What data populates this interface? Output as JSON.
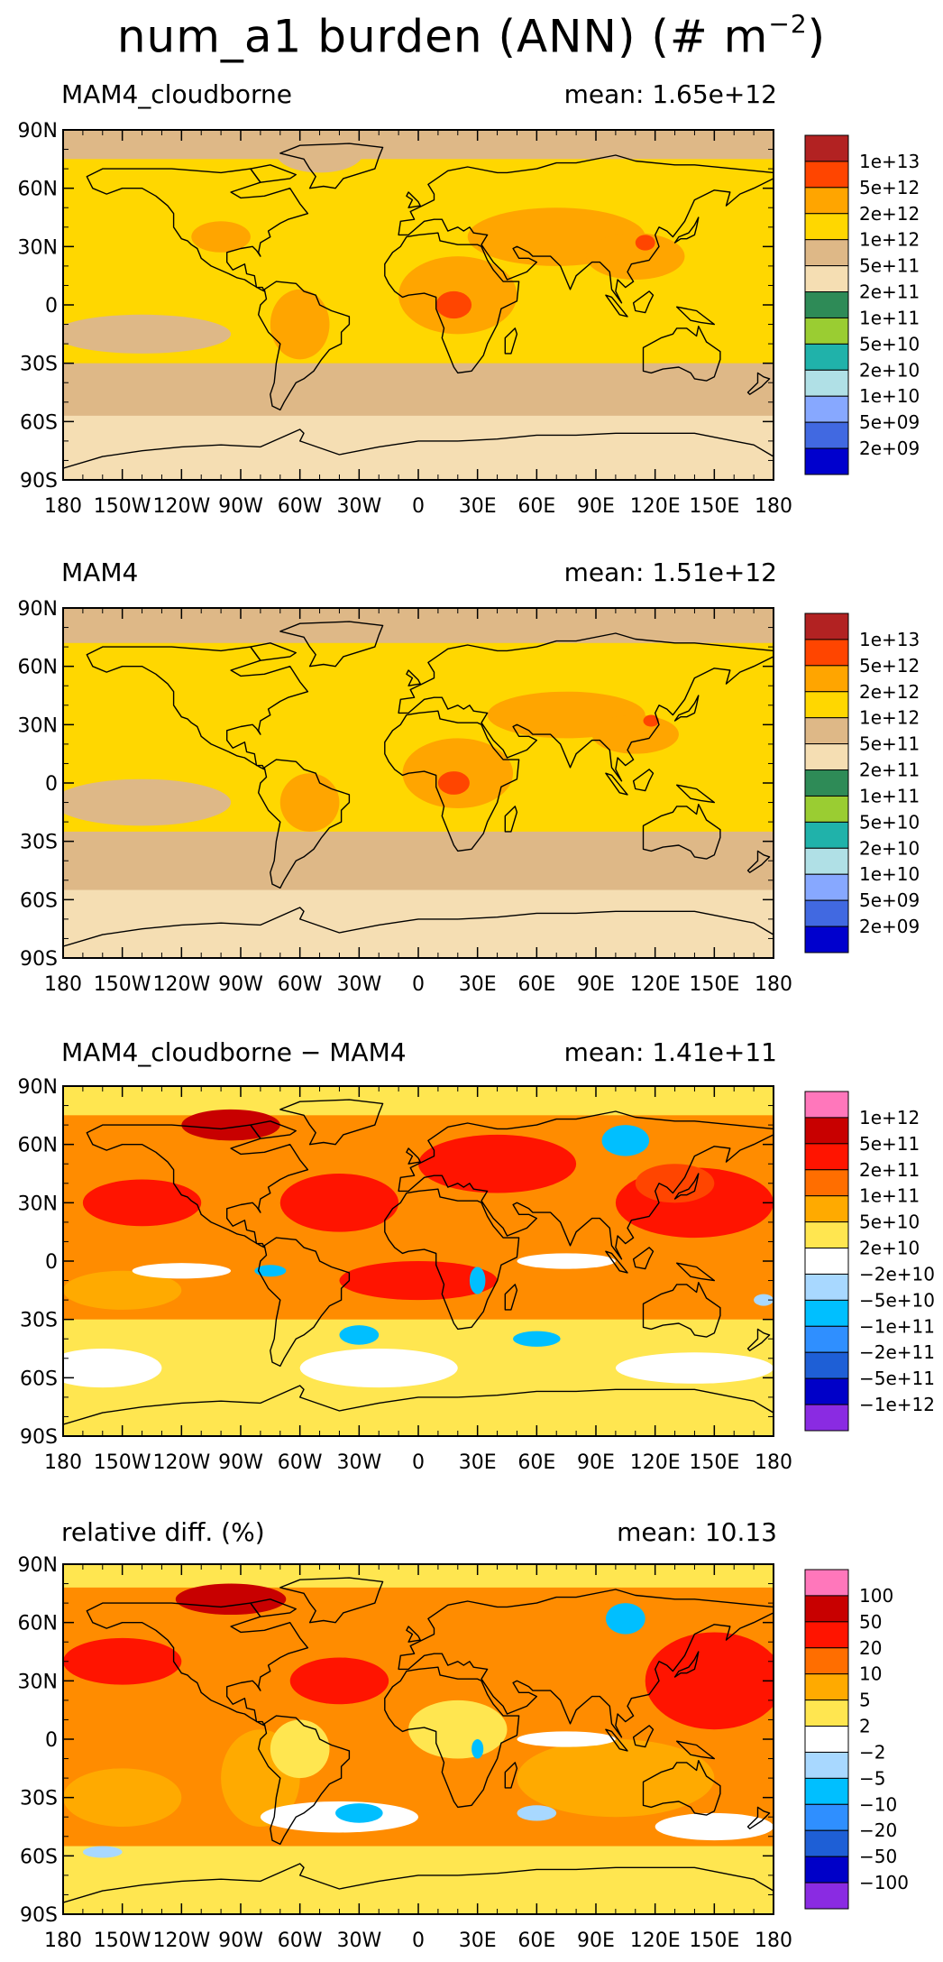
{
  "figure": {
    "title_main": "num_a1 burden (ANN) (# m",
    "title_exp": "−2",
    "title_close": ")"
  },
  "axes": {
    "lat_labels": [
      "90N",
      "60N",
      "30N",
      "0",
      "30S",
      "60S",
      "90S"
    ],
    "lon_labels": [
      "180",
      "150W",
      "120W",
      "90W",
      "60W",
      "30W",
      "0",
      "30E",
      "60E",
      "90E",
      "120E",
      "150E",
      "180"
    ]
  },
  "panels": [
    {
      "title": "MAM4_cloudborne",
      "mean_label": "mean:",
      "mean_value": "1.65e+12",
      "colorbar": {
        "labels": [
          "1e+13",
          "5e+12",
          "2e+12",
          "1e+12",
          "5e+11",
          "2e+11",
          "1e+11",
          "5e+10",
          "2e+10",
          "1e+10",
          "5e+09",
          "2e+09"
        ],
        "colors": [
          "#b22222",
          "#ff4500",
          "#ffa500",
          "#ffd700",
          "#deb887",
          "#f5deb3",
          "#2e8b57",
          "#9acd32",
          "#20b2aa",
          "#b0e0e6",
          "#87a8ff",
          "#4169e1",
          "#0000cd"
        ]
      },
      "map": {
        "background": "#ffd700",
        "blobs": [
          {
            "color": "#deb887",
            "shape": "rect",
            "lon": [
              -180,
              180
            ],
            "lat": [
              -60,
              -30
            ]
          },
          {
            "color": "#f5deb3",
            "shape": "rect",
            "lon": [
              -180,
              180
            ],
            "lat": [
              -90,
              -57
            ]
          },
          {
            "color": "#deb887",
            "shape": "rect",
            "lon": [
              -180,
              180
            ],
            "lat": [
              75,
              90
            ]
          },
          {
            "color": "#deb887",
            "shape": "ellipse",
            "lon": -50,
            "lat": 78,
            "rlon": 22,
            "rlat": 10
          },
          {
            "color": "#deb887",
            "shape": "ellipse",
            "lon": -140,
            "lat": -15,
            "rlon": 45,
            "rlat": 10
          },
          {
            "color": "#ffa500",
            "shape": "ellipse",
            "lon": -60,
            "lat": -10,
            "rlon": 15,
            "rlat": 18
          },
          {
            "color": "#ffa500",
            "shape": "ellipse",
            "lon": 20,
            "lat": 5,
            "rlon": 30,
            "rlat": 20
          },
          {
            "color": "#ffa500",
            "shape": "ellipse",
            "lon": 70,
            "lat": 35,
            "rlon": 45,
            "rlat": 15
          },
          {
            "color": "#ffa500",
            "shape": "ellipse",
            "lon": 110,
            "lat": 25,
            "rlon": 25,
            "rlat": 12
          },
          {
            "color": "#ffa500",
            "shape": "ellipse",
            "lon": -100,
            "lat": 35,
            "rlon": 15,
            "rlat": 8
          },
          {
            "color": "#ff4500",
            "shape": "ellipse",
            "lon": 18,
            "lat": 0,
            "rlon": 9,
            "rlat": 7
          },
          {
            "color": "#ff4500",
            "shape": "ellipse",
            "lon": 115,
            "lat": 32,
            "rlon": 5,
            "rlat": 4
          }
        ]
      }
    },
    {
      "title": "MAM4",
      "mean_label": "mean:",
      "mean_value": "1.51e+12",
      "colorbar": {
        "labels": [
          "1e+13",
          "5e+12",
          "2e+12",
          "1e+12",
          "5e+11",
          "2e+11",
          "1e+11",
          "5e+10",
          "2e+10",
          "1e+10",
          "5e+09",
          "2e+09"
        ],
        "colors": [
          "#b22222",
          "#ff4500",
          "#ffa500",
          "#ffd700",
          "#deb887",
          "#f5deb3",
          "#2e8b57",
          "#9acd32",
          "#20b2aa",
          "#b0e0e6",
          "#87a8ff",
          "#4169e1",
          "#0000cd"
        ]
      },
      "map": {
        "background": "#ffd700",
        "blobs": [
          {
            "color": "#deb887",
            "shape": "rect",
            "lon": [
              -180,
              180
            ],
            "lat": [
              -60,
              -25
            ]
          },
          {
            "color": "#f5deb3",
            "shape": "rect",
            "lon": [
              -180,
              180
            ],
            "lat": [
              -90,
              -55
            ]
          },
          {
            "color": "#deb887",
            "shape": "rect",
            "lon": [
              -180,
              180
            ],
            "lat": [
              72,
              90
            ]
          },
          {
            "color": "#deb887",
            "shape": "ellipse",
            "lon": -140,
            "lat": -10,
            "rlon": 45,
            "rlat": 12
          },
          {
            "color": "#ffa500",
            "shape": "ellipse",
            "lon": -55,
            "lat": -10,
            "rlon": 15,
            "rlat": 15
          },
          {
            "color": "#ffa500",
            "shape": "ellipse",
            "lon": 20,
            "lat": 5,
            "rlon": 28,
            "rlat": 18
          },
          {
            "color": "#ffa500",
            "shape": "ellipse",
            "lon": 75,
            "lat": 35,
            "rlon": 40,
            "rlat": 12
          },
          {
            "color": "#ffa500",
            "shape": "ellipse",
            "lon": 110,
            "lat": 25,
            "rlon": 22,
            "rlat": 10
          },
          {
            "color": "#ff4500",
            "shape": "ellipse",
            "lon": 18,
            "lat": 0,
            "rlon": 8,
            "rlat": 6
          },
          {
            "color": "#ff4500",
            "shape": "ellipse",
            "lon": 118,
            "lat": 32,
            "rlon": 4,
            "rlat": 3
          }
        ]
      }
    },
    {
      "title": "MAM4_cloudborne − MAM4",
      "mean_label": "mean:",
      "mean_value": "1.41e+11",
      "colorbar": {
        "labels": [
          "1e+12",
          "5e+11",
          "2e+11",
          "1e+11",
          "5e+10",
          "2e+10",
          "−2e+10",
          "−5e+10",
          "−1e+11",
          "−2e+11",
          "−5e+11",
          "−1e+12"
        ],
        "colors": [
          "#ff77bb",
          "#c80000",
          "#ff1400",
          "#ff6e00",
          "#ffaa00",
          "#ffe650",
          "#ffffff",
          "#a8d8ff",
          "#00bfff",
          "#2f8fff",
          "#1e5fd6",
          "#0000c8",
          "#8a2be2"
        ]
      },
      "map": {
        "background": "#ff8c00",
        "blobs": [
          {
            "color": "#ffe650",
            "shape": "rect",
            "lon": [
              -180,
              180
            ],
            "lat": [
              -90,
              -30
            ]
          },
          {
            "color": "#ffffff",
            "shape": "ellipse",
            "lon": -160,
            "lat": -55,
            "rlon": 30,
            "rlat": 10
          },
          {
            "color": "#ffffff",
            "shape": "ellipse",
            "lon": -20,
            "lat": -55,
            "rlon": 40,
            "rlat": 10
          },
          {
            "color": "#ffffff",
            "shape": "ellipse",
            "lon": 140,
            "lat": -55,
            "rlon": 40,
            "rlat": 8
          },
          {
            "color": "#ffe650",
            "shape": "rect",
            "lon": [
              -180,
              180
            ],
            "lat": [
              75,
              90
            ]
          },
          {
            "color": "#ffaa00",
            "shape": "ellipse",
            "lon": -150,
            "lat": -15,
            "rlon": 30,
            "rlat": 10
          },
          {
            "color": "#ff1400",
            "shape": "ellipse",
            "lon": -140,
            "lat": 30,
            "rlon": 30,
            "rlat": 12
          },
          {
            "color": "#ff1400",
            "shape": "ellipse",
            "lon": -40,
            "lat": 30,
            "rlon": 30,
            "rlat": 15
          },
          {
            "color": "#ff1400",
            "shape": "ellipse",
            "lon": 40,
            "lat": 50,
            "rlon": 40,
            "rlat": 15
          },
          {
            "color": "#ff1400",
            "shape": "ellipse",
            "lon": 140,
            "lat": 30,
            "rlon": 40,
            "rlat": 18
          },
          {
            "color": "#ff1400",
            "shape": "ellipse",
            "lon": 0,
            "lat": -10,
            "rlon": 40,
            "rlat": 10
          },
          {
            "color": "#c80000",
            "shape": "ellipse",
            "lon": -95,
            "lat": 70,
            "rlon": 25,
            "rlat": 8
          },
          {
            "color": "#ff4500",
            "shape": "ellipse",
            "lon": 130,
            "lat": 40,
            "rlon": 20,
            "rlat": 10
          },
          {
            "color": "#00bfff",
            "shape": "ellipse",
            "lon": 105,
            "lat": 62,
            "rlon": 12,
            "rlat": 8
          },
          {
            "color": "#00bfff",
            "shape": "ellipse",
            "lon": -30,
            "lat": -38,
            "rlon": 10,
            "rlat": 5
          },
          {
            "color": "#00bfff",
            "shape": "ellipse",
            "lon": 30,
            "lat": -10,
            "rlon": 4,
            "rlat": 7
          },
          {
            "color": "#00bfff",
            "shape": "ellipse",
            "lon": -75,
            "lat": -5,
            "rlon": 8,
            "rlat": 3
          },
          {
            "color": "#00bfff",
            "shape": "ellipse",
            "lon": 60,
            "lat": -40,
            "rlon": 12,
            "rlat": 4
          },
          {
            "color": "#ffffff",
            "shape": "ellipse",
            "lon": 75,
            "lat": 0,
            "rlon": 25,
            "rlat": 4
          },
          {
            "color": "#ffffff",
            "shape": "ellipse",
            "lon": -120,
            "lat": -5,
            "rlon": 25,
            "rlat": 4
          },
          {
            "color": "#a8d8ff",
            "shape": "ellipse",
            "lon": 175,
            "lat": -20,
            "rlon": 5,
            "rlat": 3
          }
        ]
      }
    },
    {
      "title": "relative diff. (%)",
      "mean_label": "mean:",
      "mean_value": "10.13",
      "colorbar": {
        "labels": [
          "100",
          "50",
          "20",
          "10",
          "5",
          "2",
          "−2",
          "−5",
          "−10",
          "−20",
          "−50",
          "−100"
        ],
        "colors": [
          "#ff77bb",
          "#c80000",
          "#ff1400",
          "#ff6e00",
          "#ffaa00",
          "#ffe650",
          "#ffffff",
          "#a8d8ff",
          "#00bfff",
          "#2f8fff",
          "#1e5fd6",
          "#0000c8",
          "#8a2be2"
        ]
      },
      "map": {
        "background": "#ff8c00",
        "blobs": [
          {
            "color": "#ffe650",
            "shape": "rect",
            "lon": [
              -180,
              180
            ],
            "lat": [
              -90,
              -55
            ]
          },
          {
            "color": "#ffaa00",
            "shape": "ellipse",
            "lon": -150,
            "lat": -30,
            "rlon": 30,
            "rlat": 15
          },
          {
            "color": "#ffaa00",
            "shape": "ellipse",
            "lon": -80,
            "lat": -20,
            "rlon": 20,
            "rlat": 25
          },
          {
            "color": "#ffaa00",
            "shape": "ellipse",
            "lon": 100,
            "lat": -20,
            "rlon": 50,
            "rlat": 20
          },
          {
            "color": "#ffe650",
            "shape": "ellipse",
            "lon": -60,
            "lat": -5,
            "rlon": 15,
            "rlat": 15
          },
          {
            "color": "#ffe650",
            "shape": "ellipse",
            "lon": 20,
            "lat": 5,
            "rlon": 25,
            "rlat": 15
          },
          {
            "color": "#ffe650",
            "shape": "rect",
            "lon": [
              -180,
              180
            ],
            "lat": [
              78,
              90
            ]
          },
          {
            "color": "#ff1400",
            "shape": "ellipse",
            "lon": -150,
            "lat": 40,
            "rlon": 30,
            "rlat": 12
          },
          {
            "color": "#ff1400",
            "shape": "ellipse",
            "lon": 150,
            "lat": 30,
            "rlon": 35,
            "rlat": 25
          },
          {
            "color": "#ff1400",
            "shape": "ellipse",
            "lon": -40,
            "lat": 30,
            "rlon": 25,
            "rlat": 12
          },
          {
            "color": "#c80000",
            "shape": "ellipse",
            "lon": -95,
            "lat": 72,
            "rlon": 28,
            "rlat": 8
          },
          {
            "color": "#ffffff",
            "shape": "ellipse",
            "lon": 75,
            "lat": 0,
            "rlon": 25,
            "rlat": 4
          },
          {
            "color": "#ffffff",
            "shape": "ellipse",
            "lon": -40,
            "lat": -40,
            "rlon": 40,
            "rlat": 8
          },
          {
            "color": "#ffffff",
            "shape": "ellipse",
            "lon": 150,
            "lat": -45,
            "rlon": 30,
            "rlat": 7
          },
          {
            "color": "#00bfff",
            "shape": "ellipse",
            "lon": 105,
            "lat": 62,
            "rlon": 10,
            "rlat": 8
          },
          {
            "color": "#00bfff",
            "shape": "ellipse",
            "lon": -30,
            "lat": -38,
            "rlon": 12,
            "rlat": 5
          },
          {
            "color": "#00bfff",
            "shape": "ellipse",
            "lon": 30,
            "lat": -5,
            "rlon": 3,
            "rlat": 5
          },
          {
            "color": "#a8d8ff",
            "shape": "ellipse",
            "lon": -160,
            "lat": -58,
            "rlon": 10,
            "rlat": 3
          },
          {
            "color": "#a8d8ff",
            "shape": "ellipse",
            "lon": 60,
            "lat": -38,
            "rlon": 10,
            "rlat": 4
          }
        ]
      }
    }
  ]
}
